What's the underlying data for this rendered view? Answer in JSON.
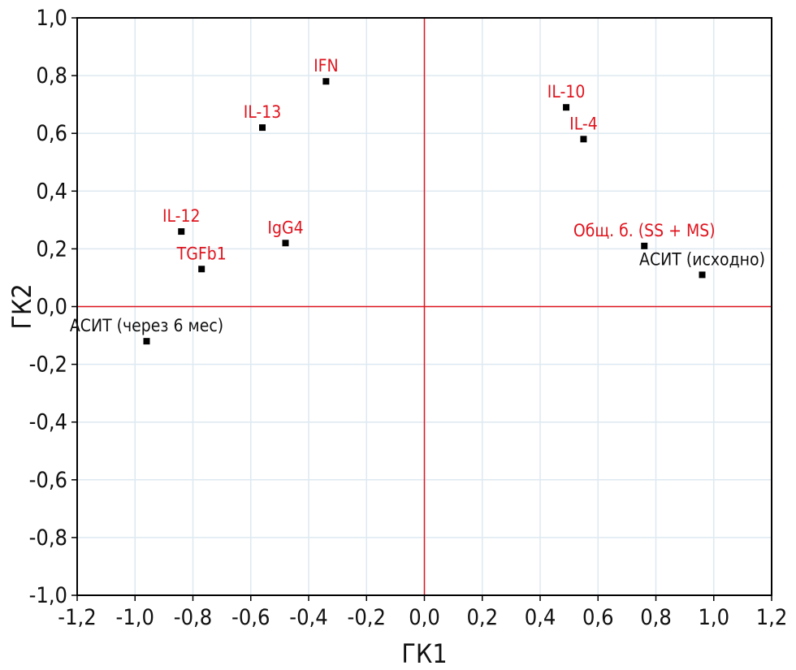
{
  "chart_data": {
    "type": "scatter",
    "xlabel": "ГК1",
    "ylabel": "ГК2",
    "xlim": [
      -1.2,
      1.2
    ],
    "ylim": [
      -1.0,
      1.0
    ],
    "grid": true,
    "x_ticks": [
      -1.2,
      -1.0,
      -0.8,
      -0.6,
      -0.4,
      -0.2,
      0.0,
      0.2,
      0.4,
      0.6,
      0.8,
      1.0,
      1.2
    ],
    "x_tick_labels": [
      "-1,2",
      "-1,0",
      "-0,8",
      "-0,6",
      "-0,4",
      "-0,2",
      "0,0",
      "0,2",
      "0,4",
      "0,6",
      "0,8",
      "1,0",
      "1,2"
    ],
    "y_ticks": [
      1.0,
      0.8,
      0.6,
      0.4,
      0.2,
      0.0,
      -0.2,
      -0.4,
      -0.6,
      -0.8,
      -1.0
    ],
    "y_tick_labels": [
      "1,0",
      "0,8",
      "0,6",
      "0,4",
      "0,2",
      "0,0",
      "-0,2",
      "-0,4",
      "-0,6",
      "-0,8",
      "-1,0"
    ],
    "reference_lines": {
      "x": 0.0,
      "y": 0.0
    },
    "colors": {
      "marker": "#000000",
      "label_red": "#e0141e",
      "label_black": "#111111",
      "reference_line": "#e0141e",
      "grid": "#dde9f1",
      "frame": "#000000"
    },
    "points": [
      {
        "label": "IFN",
        "x": -0.34,
        "y": 0.78,
        "color": "red",
        "label_pos": "above"
      },
      {
        "label": "IL-13",
        "x": -0.56,
        "y": 0.62,
        "color": "red",
        "label_pos": "above"
      },
      {
        "label": "IL-12",
        "x": -0.84,
        "y": 0.26,
        "color": "red",
        "label_pos": "above"
      },
      {
        "label": "TGFb1",
        "x": -0.77,
        "y": 0.13,
        "color": "red",
        "label_pos": "above"
      },
      {
        "label": "IgG4",
        "x": -0.48,
        "y": 0.22,
        "color": "red",
        "label_pos": "above"
      },
      {
        "label": "IL-10",
        "x": 0.49,
        "y": 0.69,
        "color": "red",
        "label_pos": "above"
      },
      {
        "label": "IL-4",
        "x": 0.55,
        "y": 0.58,
        "color": "red",
        "label_pos": "above"
      },
      {
        "label": "Общ. б. (SS + MS)",
        "x": 0.76,
        "y": 0.21,
        "color": "red",
        "label_pos": "above"
      },
      {
        "label": "АСИТ (исходно)",
        "x": 0.96,
        "y": 0.11,
        "color": "black",
        "label_pos": "above"
      },
      {
        "label": "АСИТ (через 6 мес)",
        "x": -0.96,
        "y": -0.12,
        "color": "black",
        "label_pos": "above"
      }
    ]
  }
}
